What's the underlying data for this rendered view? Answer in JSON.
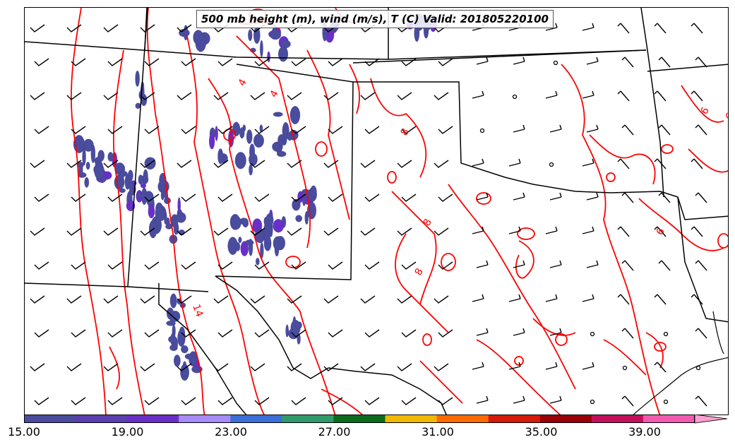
{
  "title": "500 mb height (m), wind (m/s), T (C) Valid: 201805220100",
  "colorbar": {
    "ticks": [
      "15.00",
      "19.00",
      "23.00",
      "27.00",
      "31.00",
      "35.00",
      "39.00"
    ],
    "colors": [
      "#4a4c9e",
      "#5b3fb0",
      "#6a2fc9",
      "#a78bfa",
      "#3a6fd8",
      "#2f9b6a",
      "#0b6b1c",
      "#f1b800",
      "#ff6a00",
      "#d61a0a",
      "#9a0008",
      "#c4105a",
      "#f25ab0",
      "#ff9fd0"
    ]
  },
  "contours": {
    "color": "#ff0000",
    "labels": [
      "4",
      "4",
      "6",
      "6",
      "6",
      "8",
      "8",
      "8",
      "14"
    ]
  },
  "wind_barbs": {
    "color": "#000000"
  },
  "fill_color": "#4a4c9e"
}
